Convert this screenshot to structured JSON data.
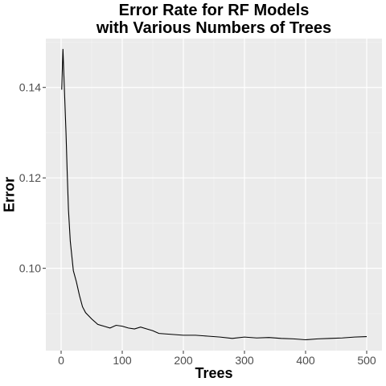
{
  "chart_data": {
    "type": "line",
    "title_lines": [
      "Error Rate for RF Models",
      "with Various Numbers of Trees"
    ],
    "xlabel": "Trees",
    "ylabel": "Error",
    "xlim": [
      -25,
      525
    ],
    "ylim": [
      0.0818,
      0.1508
    ],
    "x_ticks": [
      0,
      100,
      200,
      300,
      400,
      500
    ],
    "y_ticks": [
      0.1,
      0.12,
      0.14
    ],
    "y_tick_labels": [
      "0.10",
      "0.12",
      "0.14"
    ],
    "grid": true,
    "background": "#ebebeb",
    "line_color": "#000000",
    "series": [
      {
        "x": [
          1,
          3,
          5,
          8,
          10,
          12,
          15,
          20,
          25,
          30,
          35,
          40,
          50,
          60,
          70,
          80,
          90,
          100,
          110,
          120,
          130,
          140,
          150,
          160,
          180,
          200,
          220,
          240,
          260,
          280,
          300,
          320,
          340,
          360,
          380,
          400,
          420,
          440,
          460,
          480,
          500
        ],
        "y": [
          0.1395,
          0.1485,
          0.141,
          0.13,
          0.121,
          0.113,
          0.106,
          0.0995,
          0.097,
          0.094,
          0.0915,
          0.0902,
          0.0888,
          0.0876,
          0.0872,
          0.0868,
          0.0874,
          0.0872,
          0.0868,
          0.0866,
          0.087,
          0.0866,
          0.0862,
          0.0856,
          0.0854,
          0.0852,
          0.0852,
          0.085,
          0.0848,
          0.0845,
          0.0848,
          0.0846,
          0.0847,
          0.0845,
          0.0844,
          0.0842,
          0.0844,
          0.0845,
          0.0846,
          0.0848,
          0.0849
        ]
      }
    ]
  }
}
